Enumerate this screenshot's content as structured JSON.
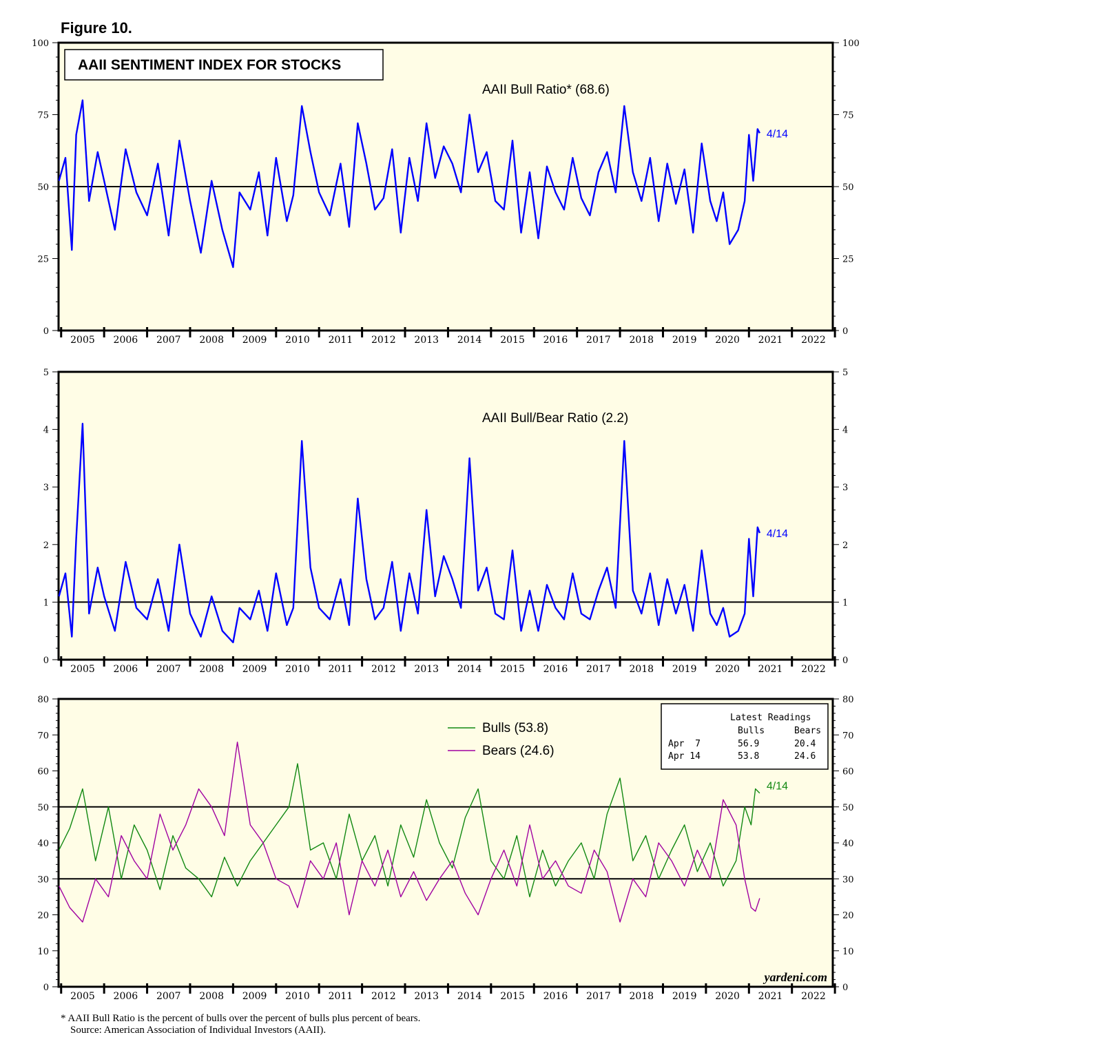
{
  "figure_label": "Figure 10.",
  "chart_title": "AAII SENTIMENT INDEX FOR STOCKS",
  "colors": {
    "plot_bg": "#fffde6",
    "bull_ratio": "#0000ff",
    "bulls": "#118811",
    "bears": "#a000a0"
  },
  "x_axis": {
    "years": [
      "2005",
      "2006",
      "2007",
      "2008",
      "2009",
      "2010",
      "2011",
      "2012",
      "2013",
      "2014",
      "2015",
      "2016",
      "2017",
      "2018",
      "2019",
      "2020",
      "2021",
      "2022"
    ],
    "range": [
      2004.94,
      2022.95
    ]
  },
  "chart_data": [
    {
      "type": "line",
      "title": "AAII Bull Ratio* (68.6)",
      "ylim": [
        0,
        100
      ],
      "yticks": [
        "0",
        "25",
        "50",
        "75",
        "100"
      ],
      "reference_lines": [
        50
      ],
      "end_label": "4/14",
      "series": [
        {
          "name": "AAII Bull Ratio",
          "latest": 68.6,
          "x": [
            2004.95,
            2005.1,
            2005.25,
            2005.35,
            2005.5,
            2005.65,
            2005.85,
            2006.0,
            2006.25,
            2006.5,
            2006.75,
            2007.0,
            2007.25,
            2007.5,
            2007.75,
            2008.0,
            2008.25,
            2008.5,
            2008.75,
            2009.0,
            2009.15,
            2009.4,
            2009.6,
            2009.8,
            2010.0,
            2010.25,
            2010.4,
            2010.6,
            2010.8,
            2011.0,
            2011.25,
            2011.5,
            2011.7,
            2011.9,
            2012.1,
            2012.3,
            2012.5,
            2012.7,
            2012.9,
            2013.1,
            2013.3,
            2013.5,
            2013.7,
            2013.9,
            2014.1,
            2014.3,
            2014.5,
            2014.7,
            2014.9,
            2015.1,
            2015.3,
            2015.5,
            2015.7,
            2015.9,
            2016.1,
            2016.3,
            2016.5,
            2016.7,
            2016.9,
            2017.1,
            2017.3,
            2017.5,
            2017.7,
            2017.9,
            2018.1,
            2018.3,
            2018.5,
            2018.7,
            2018.9,
            2019.1,
            2019.3,
            2019.5,
            2019.7,
            2019.9,
            2020.1,
            2020.25,
            2020.4,
            2020.55,
            2020.75,
            2020.9,
            2021.0,
            2021.1,
            2021.2,
            2021.25
          ],
          "y": [
            52,
            60,
            28,
            68,
            80,
            45,
            62,
            52,
            35,
            63,
            48,
            40,
            58,
            33,
            66,
            45,
            27,
            52,
            35,
            22,
            48,
            42,
            55,
            33,
            60,
            38,
            47,
            78,
            62,
            48,
            40,
            58,
            36,
            72,
            58,
            42,
            46,
            63,
            34,
            60,
            45,
            72,
            53,
            64,
            58,
            48,
            75,
            55,
            62,
            45,
            42,
            66,
            34,
            55,
            32,
            57,
            48,
            42,
            60,
            46,
            40,
            55,
            62,
            48,
            78,
            55,
            45,
            60,
            38,
            58,
            44,
            56,
            34,
            65,
            45,
            38,
            48,
            30,
            35,
            45,
            68,
            52,
            70,
            68.6
          ]
        }
      ]
    },
    {
      "type": "line",
      "title": "AAII Bull/Bear Ratio (2.2)",
      "ylim": [
        0,
        5
      ],
      "yticks": [
        "0",
        "1",
        "2",
        "3",
        "4",
        "5"
      ],
      "reference_lines": [
        1
      ],
      "end_label": "4/14",
      "series": [
        {
          "name": "AAII Bull/Bear Ratio",
          "latest": 2.2,
          "x": [
            2004.95,
            2005.1,
            2005.25,
            2005.35,
            2005.5,
            2005.65,
            2005.85,
            2006.0,
            2006.25,
            2006.5,
            2006.75,
            2007.0,
            2007.25,
            2007.5,
            2007.75,
            2008.0,
            2008.25,
            2008.5,
            2008.75,
            2009.0,
            2009.15,
            2009.4,
            2009.6,
            2009.8,
            2010.0,
            2010.25,
            2010.4,
            2010.6,
            2010.8,
            2011.0,
            2011.25,
            2011.5,
            2011.7,
            2011.9,
            2012.1,
            2012.3,
            2012.5,
            2012.7,
            2012.9,
            2013.1,
            2013.3,
            2013.5,
            2013.7,
            2013.9,
            2014.1,
            2014.3,
            2014.5,
            2014.7,
            2014.9,
            2015.1,
            2015.3,
            2015.5,
            2015.7,
            2015.9,
            2016.1,
            2016.3,
            2016.5,
            2016.7,
            2016.9,
            2017.1,
            2017.3,
            2017.5,
            2017.7,
            2017.9,
            2018.1,
            2018.3,
            2018.5,
            2018.7,
            2018.9,
            2019.1,
            2019.3,
            2019.5,
            2019.7,
            2019.9,
            2020.1,
            2020.25,
            2020.4,
            2020.55,
            2020.75,
            2020.9,
            2021.0,
            2021.1,
            2021.2,
            2021.25
          ],
          "y": [
            1.1,
            1.5,
            0.4,
            2.1,
            4.1,
            0.8,
            1.6,
            1.1,
            0.5,
            1.7,
            0.9,
            0.7,
            1.4,
            0.5,
            2.0,
            0.8,
            0.4,
            1.1,
            0.5,
            0.3,
            0.9,
            0.7,
            1.2,
            0.5,
            1.5,
            0.6,
            0.9,
            3.8,
            1.6,
            0.9,
            0.7,
            1.4,
            0.6,
            2.8,
            1.4,
            0.7,
            0.9,
            1.7,
            0.5,
            1.5,
            0.8,
            2.6,
            1.1,
            1.8,
            1.4,
            0.9,
            3.5,
            1.2,
            1.6,
            0.8,
            0.7,
            1.9,
            0.5,
            1.2,
            0.5,
            1.3,
            0.9,
            0.7,
            1.5,
            0.8,
            0.7,
            1.2,
            1.6,
            0.9,
            3.8,
            1.2,
            0.8,
            1.5,
            0.6,
            1.4,
            0.8,
            1.3,
            0.5,
            1.9,
            0.8,
            0.6,
            0.9,
            0.4,
            0.5,
            0.8,
            2.1,
            1.1,
            2.3,
            2.2
          ]
        }
      ]
    },
    {
      "type": "line",
      "ylim": [
        0,
        80
      ],
      "yticks": [
        "0",
        "10",
        "20",
        "30",
        "40",
        "50",
        "60",
        "70",
        "80"
      ],
      "reference_lines": [
        30,
        50
      ],
      "end_label": "4/14",
      "legend": [
        {
          "name": "Bulls (53.8)",
          "color": "#118811"
        },
        {
          "name": "Bears (24.6)",
          "color": "#a000a0"
        }
      ],
      "series": [
        {
          "name": "Bulls",
          "latest": 53.8,
          "x": [
            2004.95,
            2005.2,
            2005.5,
            2005.8,
            2006.1,
            2006.4,
            2006.7,
            2007.0,
            2007.3,
            2007.6,
            2007.9,
            2008.2,
            2008.5,
            2008.8,
            2009.1,
            2009.4,
            2009.7,
            2010.0,
            2010.3,
            2010.5,
            2010.8,
            2011.1,
            2011.4,
            2011.7,
            2012.0,
            2012.3,
            2012.6,
            2012.9,
            2013.2,
            2013.5,
            2013.8,
            2014.1,
            2014.4,
            2014.7,
            2015.0,
            2015.3,
            2015.6,
            2015.9,
            2016.2,
            2016.5,
            2016.8,
            2017.1,
            2017.4,
            2017.7,
            2018.0,
            2018.3,
            2018.6,
            2018.9,
            2019.2,
            2019.5,
            2019.8,
            2020.1,
            2020.4,
            2020.7,
            2020.9,
            2021.05,
            2021.15,
            2021.25
          ],
          "y": [
            38,
            44,
            55,
            35,
            50,
            30,
            45,
            38,
            27,
            42,
            33,
            30,
            25,
            36,
            28,
            35,
            40,
            45,
            50,
            62,
            38,
            40,
            30,
            48,
            35,
            42,
            28,
            45,
            36,
            52,
            40,
            33,
            47,
            55,
            35,
            30,
            42,
            25,
            38,
            28,
            35,
            40,
            30,
            48,
            58,
            35,
            42,
            30,
            38,
            45,
            32,
            40,
            28,
            35,
            50,
            45,
            55,
            53.8
          ]
        },
        {
          "name": "Bears",
          "latest": 24.6,
          "x": [
            2004.95,
            2005.2,
            2005.5,
            2005.8,
            2006.1,
            2006.4,
            2006.7,
            2007.0,
            2007.3,
            2007.6,
            2007.9,
            2008.2,
            2008.5,
            2008.8,
            2009.1,
            2009.4,
            2009.7,
            2010.0,
            2010.3,
            2010.5,
            2010.8,
            2011.1,
            2011.4,
            2011.7,
            2012.0,
            2012.3,
            2012.6,
            2012.9,
            2013.2,
            2013.5,
            2013.8,
            2014.1,
            2014.4,
            2014.7,
            2015.0,
            2015.3,
            2015.6,
            2015.9,
            2016.2,
            2016.5,
            2016.8,
            2017.1,
            2017.4,
            2017.7,
            2018.0,
            2018.3,
            2018.6,
            2018.9,
            2019.2,
            2019.5,
            2019.8,
            2020.1,
            2020.4,
            2020.7,
            2020.9,
            2021.05,
            2021.15,
            2021.25
          ],
          "y": [
            28,
            22,
            18,
            30,
            25,
            42,
            35,
            30,
            48,
            38,
            45,
            55,
            50,
            42,
            68,
            45,
            40,
            30,
            28,
            22,
            35,
            30,
            40,
            20,
            35,
            28,
            38,
            25,
            32,
            24,
            30,
            35,
            26,
            20,
            30,
            38,
            28,
            45,
            30,
            35,
            28,
            26,
            38,
            32,
            18,
            30,
            25,
            40,
            35,
            28,
            38,
            30,
            52,
            45,
            30,
            22,
            21,
            24.6
          ]
        }
      ],
      "latest_readings": {
        "title": "Latest Readings",
        "columns": [
          "Bulls",
          "Bears"
        ],
        "rows": [
          {
            "date": "Apr  7",
            "bulls": "56.9",
            "bears": "20.4"
          },
          {
            "date": "Apr 14",
            "bulls": "53.8",
            "bears": "24.6"
          }
        ]
      },
      "watermark": "yardeni.com"
    }
  ],
  "footnotes": [
    "* AAII Bull Ratio is the percent of bulls over the percent of bulls plus percent of bears.",
    "Source: American Association of Individual Investors (AAII)."
  ]
}
